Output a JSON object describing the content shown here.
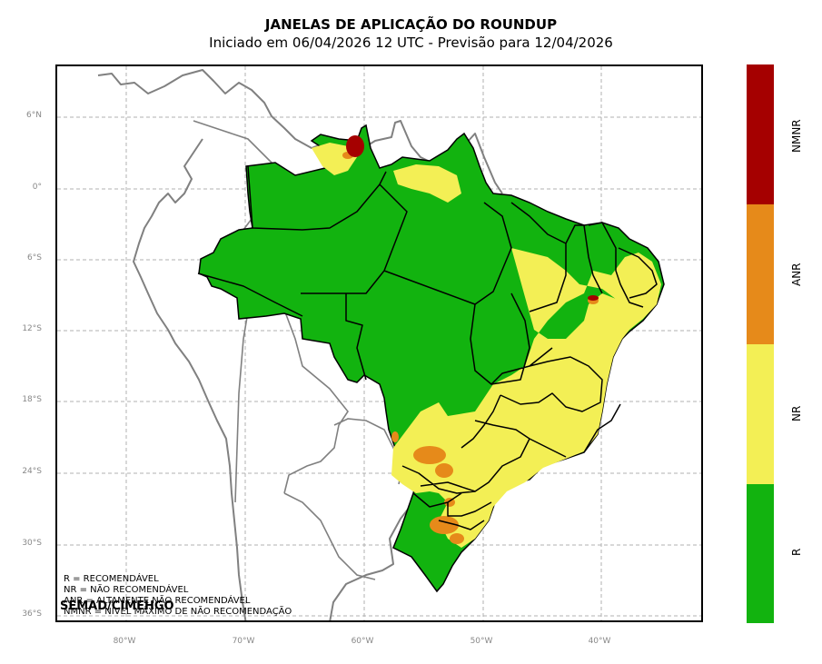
{
  "title": "JANELAS DE APLICAÇÃO DO ROUNDUP",
  "subtitle": "Iniciado em 06/04/2026 12 UTC - Previsão para 12/04/2026",
  "map": {
    "lat_ticks": [
      "6°N",
      "0°",
      "6°S",
      "12°S",
      "18°S",
      "24°S",
      "30°S",
      "36°S"
    ],
    "lon_ticks": [
      "80°W",
      "70°W",
      "60°W",
      "50°W",
      "40°W"
    ],
    "legend_lines": [
      "R = RECOMENDÁVEL",
      "NR = NÃO RECOMENDÁVEL",
      "ANR = ALTAMENTE NÃO RECOMENDÁVEL",
      "NMNR = NÍVEL MÁXIMO DE NÃO RECOMENDAÇÃO"
    ],
    "credit": "SEMAD/CIMEHGO"
  },
  "colorbar": {
    "categories": [
      {
        "label": "NMNR",
        "color": "#a50000"
      },
      {
        "label": "ANR",
        "color": "#e68a1a"
      },
      {
        "label": "NR",
        "color": "#f3ef55"
      },
      {
        "label": "R",
        "color": "#12b30f"
      }
    ]
  },
  "colors": {
    "border": "#000000",
    "coast": "#808080",
    "grid": "#b0b0b0"
  }
}
